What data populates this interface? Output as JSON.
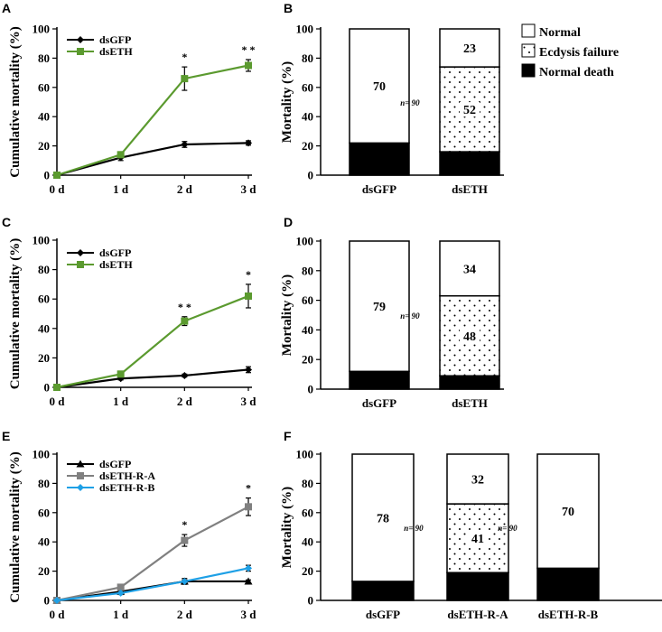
{
  "colors": {
    "black": "#000000",
    "green": "#5b9a2f",
    "gray": "#808080",
    "blue": "#1ea0e6",
    "white": "#ffffff"
  },
  "stack_legend": {
    "entries": [
      {
        "label": "Normal",
        "fill": "white"
      },
      {
        "label": "Ecdysis failure",
        "fill": "dots"
      },
      {
        "label": "Normal death",
        "fill": "black"
      }
    ]
  },
  "chart_data": [
    {
      "panel": "A",
      "type": "line",
      "ylabel": "Cumulative mortality (%)",
      "x": [
        "0 d",
        "1 d",
        "2 d",
        "3 d"
      ],
      "ylim": [
        0,
        100
      ],
      "yticks": [
        0,
        20,
        40,
        60,
        80,
        100
      ],
      "series": [
        {
          "name": "dsGFP",
          "color": "black",
          "marker": "diamond",
          "values": [
            0,
            12,
            21,
            22
          ],
          "errors": [
            0,
            2,
            2,
            1.5
          ]
        },
        {
          "name": "dsETH",
          "color": "green",
          "marker": "square",
          "values": [
            0,
            14,
            66,
            75
          ],
          "errors": [
            0,
            2,
            8,
            4
          ]
        }
      ],
      "significance": [
        {
          "x": "2 d",
          "value": 66,
          "label": "*"
        },
        {
          "x": "3 d",
          "value": 75,
          "label": "* *"
        }
      ]
    },
    {
      "panel": "B",
      "type": "bar",
      "stacked": true,
      "ylabel": "Mortality (%)",
      "ylim": [
        0,
        100
      ],
      "yticks": [
        0,
        20,
        40,
        60,
        80,
        100
      ],
      "categories": [
        "dsGFP",
        "dsETH"
      ],
      "segments": [
        {
          "normal_death": 22,
          "ecdysis_failure": 0,
          "normal": 78,
          "labels": {
            "normal": "70"
          }
        },
        {
          "normal_death": 16,
          "ecdysis_failure": 58,
          "normal": 26,
          "labels": {
            "ecdysis_failure": "52",
            "normal": "23"
          }
        }
      ],
      "n_labels": [
        "n= 90"
      ]
    },
    {
      "panel": "C",
      "type": "line",
      "ylabel": "Cumulative mortality (%)",
      "x": [
        "0 d",
        "1 d",
        "2 d",
        "3 d"
      ],
      "ylim": [
        0,
        100
      ],
      "yticks": [
        0,
        20,
        40,
        60,
        80,
        100
      ],
      "series": [
        {
          "name": "dsGFP",
          "color": "black",
          "marker": "diamond",
          "values": [
            0,
            6,
            8,
            12
          ],
          "errors": [
            0,
            1,
            1,
            2
          ]
        },
        {
          "name": "dsETH",
          "color": "green",
          "marker": "square",
          "values": [
            0,
            9,
            45,
            62
          ],
          "errors": [
            0,
            2,
            3,
            8
          ]
        }
      ],
      "significance": [
        {
          "x": "2 d",
          "value": 45,
          "label": "* *"
        },
        {
          "x": "3 d",
          "value": 62,
          "label": "*"
        }
      ]
    },
    {
      "panel": "D",
      "type": "bar",
      "stacked": true,
      "ylabel": "Mortality (%)",
      "ylim": [
        0,
        100
      ],
      "yticks": [
        0,
        20,
        40,
        60,
        80,
        100
      ],
      "categories": [
        "dsGFP",
        "dsETH"
      ],
      "segments": [
        {
          "normal_death": 12,
          "ecdysis_failure": 0,
          "normal": 88,
          "labels": {
            "normal": "79"
          }
        },
        {
          "normal_death": 9,
          "ecdysis_failure": 54,
          "normal": 37,
          "labels": {
            "ecdysis_failure": "48",
            "normal": "34"
          }
        }
      ],
      "n_labels": [
        "n= 90"
      ]
    },
    {
      "panel": "E",
      "type": "line",
      "ylabel": "Cumulative mortality (%)",
      "x": [
        "0 d",
        "1 d",
        "2 d",
        "3 d"
      ],
      "ylim": [
        0,
        100
      ],
      "yticks": [
        0,
        20,
        40,
        60,
        80,
        100
      ],
      "series": [
        {
          "name": "dsGFP",
          "color": "black",
          "marker": "triangle",
          "values": [
            0,
            6,
            13,
            13
          ],
          "errors": [
            0,
            1,
            2,
            1
          ]
        },
        {
          "name": "dsETH-R-A",
          "color": "gray",
          "marker": "square",
          "values": [
            0,
            9,
            41,
            64
          ],
          "errors": [
            0,
            2,
            4,
            6
          ]
        },
        {
          "name": "dsETH-R-B",
          "color": "blue",
          "marker": "diamond",
          "values": [
            0,
            5,
            13,
            22
          ],
          "errors": [
            0,
            1,
            1,
            2
          ]
        }
      ],
      "significance": [
        {
          "x": "2 d",
          "value": 41,
          "label": "*"
        },
        {
          "x": "3 d",
          "value": 64,
          "label": "*"
        }
      ]
    },
    {
      "panel": "F",
      "type": "bar",
      "stacked": true,
      "ylabel": "Mortality (%)",
      "ylim": [
        0,
        100
      ],
      "yticks": [
        0,
        20,
        40,
        60,
        80,
        100
      ],
      "categories": [
        "dsGFP",
        "dsETH-R-A",
        "dsETH-R-B"
      ],
      "segments": [
        {
          "normal_death": 13,
          "ecdysis_failure": 0,
          "normal": 87,
          "labels": {
            "normal": "78"
          }
        },
        {
          "normal_death": 19,
          "ecdysis_failure": 47,
          "normal": 34,
          "labels": {
            "ecdysis_failure": "41",
            "normal": "32"
          }
        },
        {
          "normal_death": 22,
          "ecdysis_failure": 0,
          "normal": 78,
          "labels": {
            "normal": "70"
          }
        }
      ],
      "n_labels": [
        "n= 90",
        "n= 90"
      ]
    }
  ]
}
